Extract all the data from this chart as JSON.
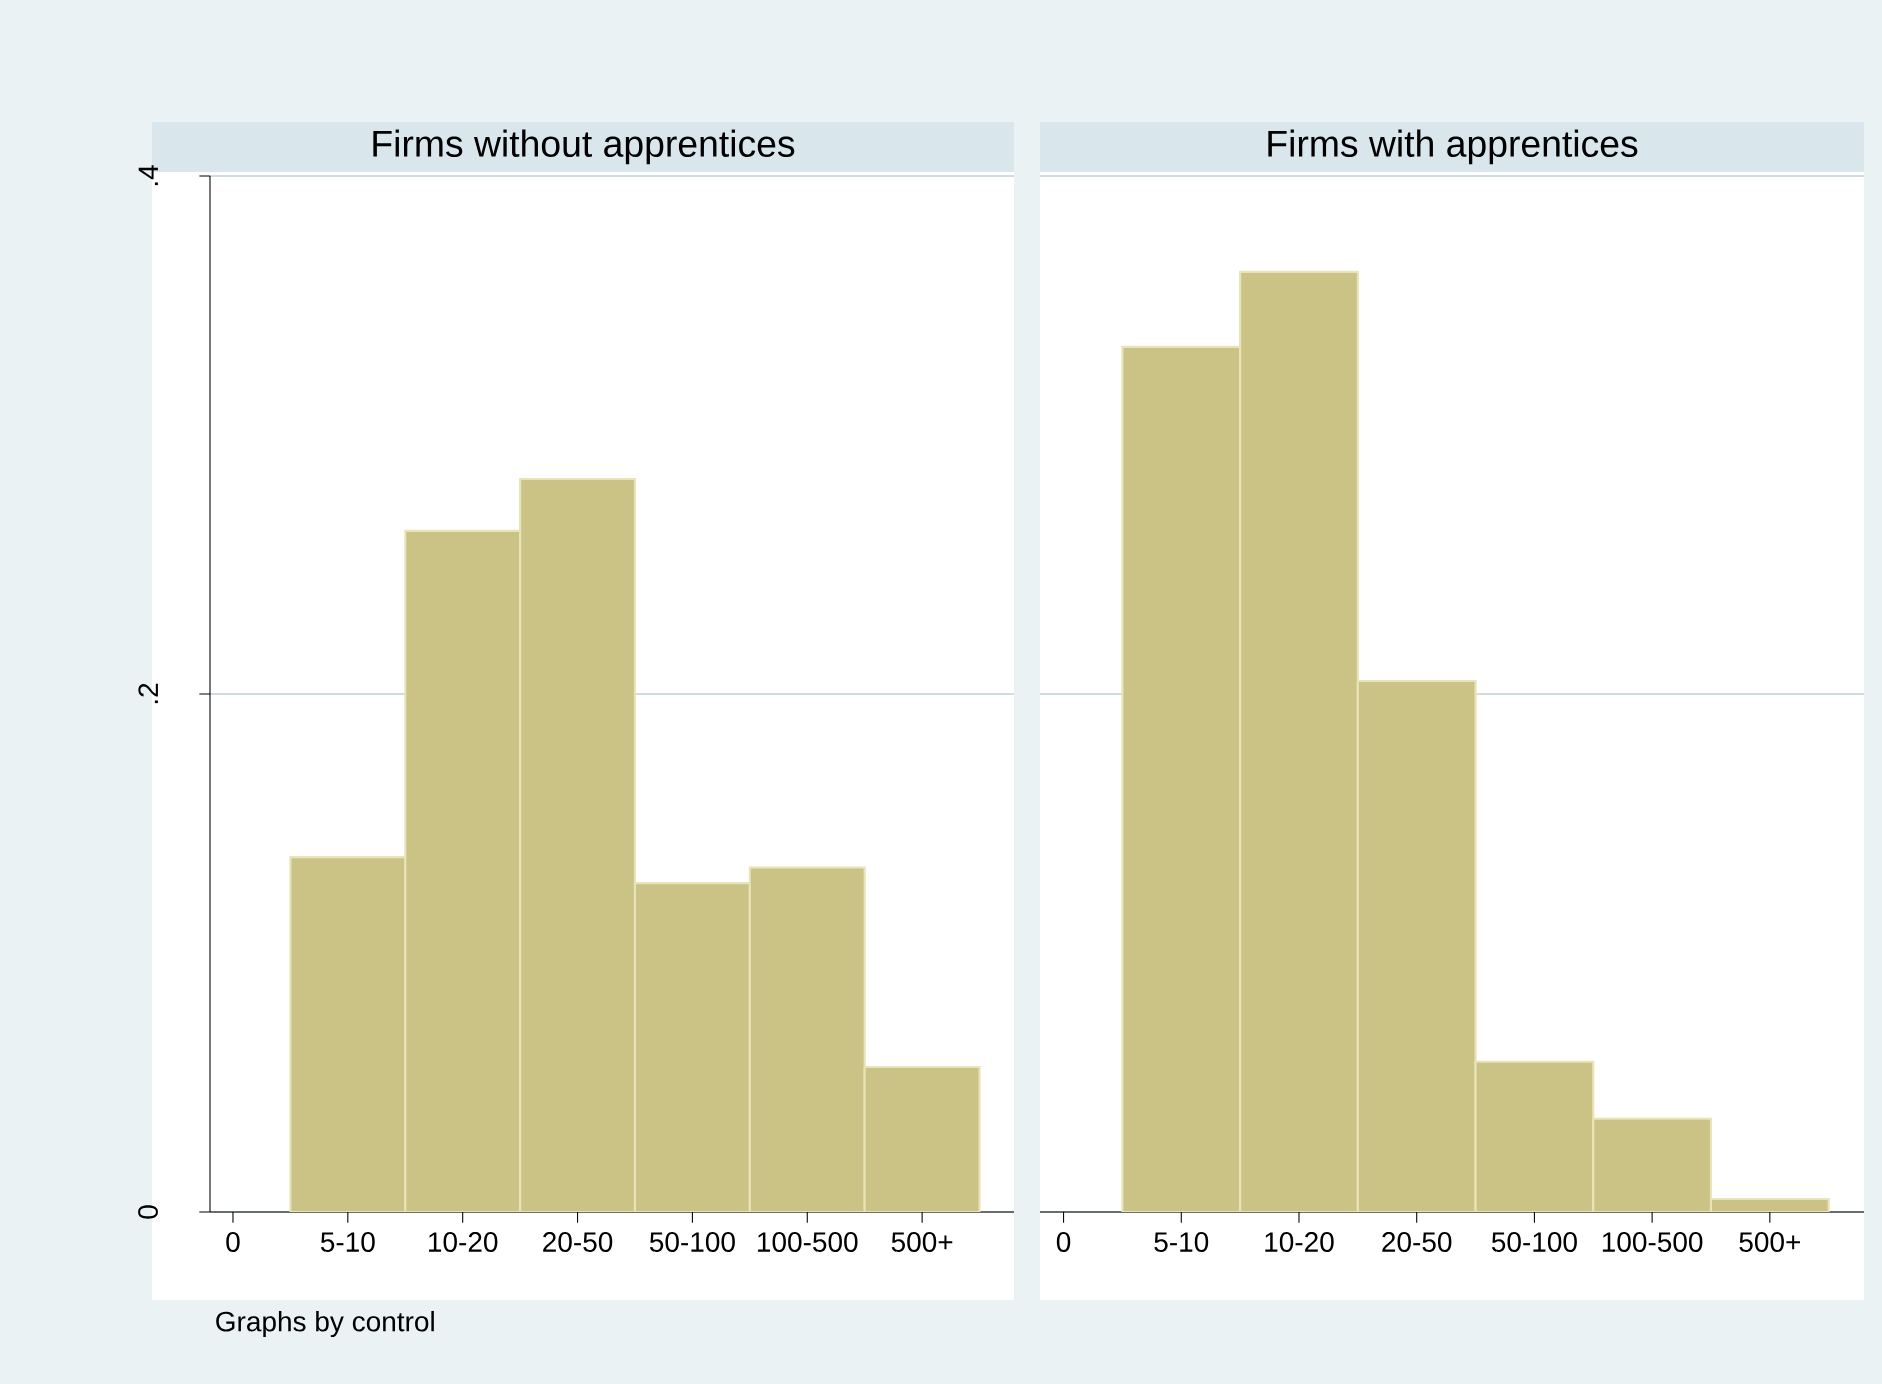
{
  "chart_data": [
    {
      "type": "bar",
      "title": "Firms without apprentices",
      "categories": [
        "0",
        "5-10",
        "10-20",
        "20-50",
        "50-100",
        "100-500",
        "500+"
      ],
      "values": [
        null,
        0.137,
        0.263,
        0.283,
        0.127,
        0.133,
        0.056
      ],
      "color": "#cbc285",
      "ylim": [
        0,
        0.4
      ],
      "yticks": [
        0,
        {
          "value": 0.2,
          "label": ".2"
        },
        {
          "value": 0.4,
          "label": ".4"
        }
      ],
      "grid": "y",
      "annotations": [
        "Graphs by control"
      ]
    },
    {
      "type": "bar",
      "title": "Firms with apprentices",
      "categories": [
        "0",
        "5-10",
        "10-20",
        "20-50",
        "50-100",
        "100-500",
        "500+"
      ],
      "values": [
        null,
        0.334,
        0.363,
        0.205,
        0.058,
        0.036,
        0.005
      ],
      "color": "#cbc285",
      "ylim": [
        0,
        0.4
      ],
      "yticks": [
        0,
        0.2,
        0.4
      ],
      "grid": "y",
      "tick_labels": "x"
    }
  ]
}
